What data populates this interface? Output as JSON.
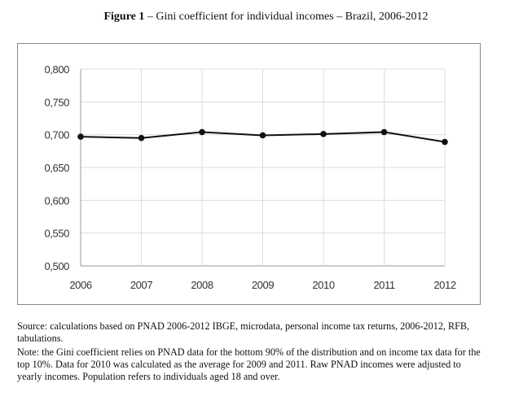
{
  "figure": {
    "label": "Figure 1",
    "title": " – Gini coefficient for individual incomes – Brazil, 2006-2012"
  },
  "chart_data": {
    "type": "line",
    "x": [
      "2006",
      "2007",
      "2008",
      "2009",
      "2010",
      "2011",
      "2012"
    ],
    "series": [
      {
        "values": [
          0.697,
          0.695,
          0.704,
          0.699,
          0.701,
          0.704,
          0.689
        ]
      }
    ],
    "ylim": [
      0.5,
      0.8
    ],
    "y_ticks": [
      "0,500",
      "0,550",
      "0,600",
      "0,650",
      "0,700",
      "0,750",
      "0,800"
    ],
    "grid": true,
    "xlabel": "",
    "ylabel": ""
  },
  "notes": {
    "source": "Source: calculations based on PNAD 2006-2012 IBGE, microdata, personal income tax returns, 2006-2012, RFB, tabulations.",
    "note": "Note: the Gini coefficient relies on PNAD data for the bottom 90% of the distribution and on income tax data for the top 10%. Data for 2010 was calculated as the average for 2009 and 2011. Raw PNAD incomes were adjusted to yearly incomes. Population refers to individuals aged 18 and over."
  },
  "colors": {
    "line": "#111111",
    "grid": "#dcdcdc",
    "axis": "#9a9a9a",
    "tick_text": "#333333"
  }
}
